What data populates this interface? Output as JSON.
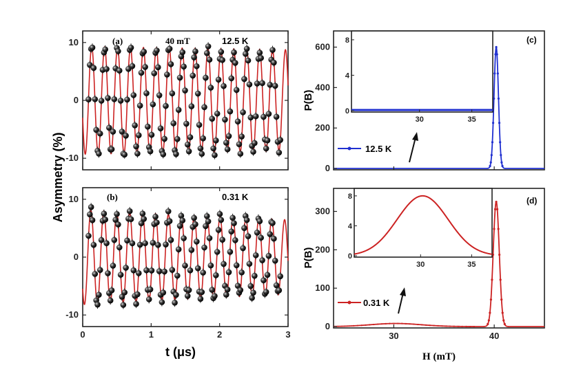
{
  "chart_data": [
    {
      "id": "a",
      "type": "scatter",
      "panel_label": "(a)",
      "field_label": "40 mT",
      "temperature_label": "12.5 K",
      "xlim": [
        0,
        3
      ],
      "ylim": [
        -12,
        12
      ],
      "yticks": [
        -10,
        0,
        10
      ],
      "ylabel": "Asymmetry (%)",
      "series": [
        {
          "name": "data",
          "marker": "black sphere with error bar",
          "model": {
            "amplitude": 9.3,
            "frequency_MHz": 5.3,
            "phase": 1.9,
            "damping": 0.02,
            "offset": 0
          }
        },
        {
          "name": "fit",
          "color": "#cc2222"
        }
      ]
    },
    {
      "id": "b",
      "type": "scatter",
      "panel_label": "(b)",
      "temperature_label": "0.31 K",
      "xlim": [
        0,
        3
      ],
      "ylim": [
        -12,
        12
      ],
      "xticks": [
        0,
        1,
        2,
        3
      ],
      "yticks": [
        -10,
        0,
        10
      ],
      "xlabel": "t (μs)",
      "ylabel": "Asymmetry (%)",
      "series": [
        {
          "name": "data",
          "marker": "black sphere with error bar",
          "model": {
            "amplitude": 8.2,
            "frequency_MHz": 5.3,
            "phase": 2.3,
            "damping": 0.08,
            "offset": 0
          }
        },
        {
          "name": "fit",
          "color": "#cc2222"
        }
      ]
    },
    {
      "id": "c",
      "type": "line",
      "panel_label": "(c)",
      "legend": "12.5 K",
      "color": "#1f2fd0",
      "xlim": [
        24,
        45
      ],
      "ylim": [
        0,
        680
      ],
      "yticks": [
        0,
        200,
        400,
        600
      ],
      "ylabel": "P(B)",
      "peak": {
        "center": 40.2,
        "height": 600,
        "width": 0.22
      },
      "inset": {
        "xlim": [
          23.5,
          37
        ],
        "ylim": [
          0,
          9
        ],
        "xticks": [
          30,
          35
        ],
        "yticks": [
          0,
          4,
          8
        ]
      }
    },
    {
      "id": "d",
      "type": "line",
      "panel_label": "(d)",
      "legend": "0.31 K",
      "color": "#cc2222",
      "xlim": [
        24,
        45
      ],
      "ylim": [
        0,
        360
      ],
      "xticks": [
        30,
        40
      ],
      "yticks": [
        0,
        100,
        200,
        300
      ],
      "xlabel": "H (mT)",
      "ylabel": "P(B)",
      "peak": {
        "center": 40.2,
        "height": 325,
        "width": 0.3
      },
      "broad": {
        "center": 30.2,
        "height": 8,
        "width": 2.5
      },
      "inset": {
        "xlim": [
          23.5,
          37
        ],
        "ylim": [
          0,
          9
        ],
        "xticks": [
          30,
          35
        ],
        "yticks": [
          0,
          4,
          8
        ]
      }
    }
  ]
}
